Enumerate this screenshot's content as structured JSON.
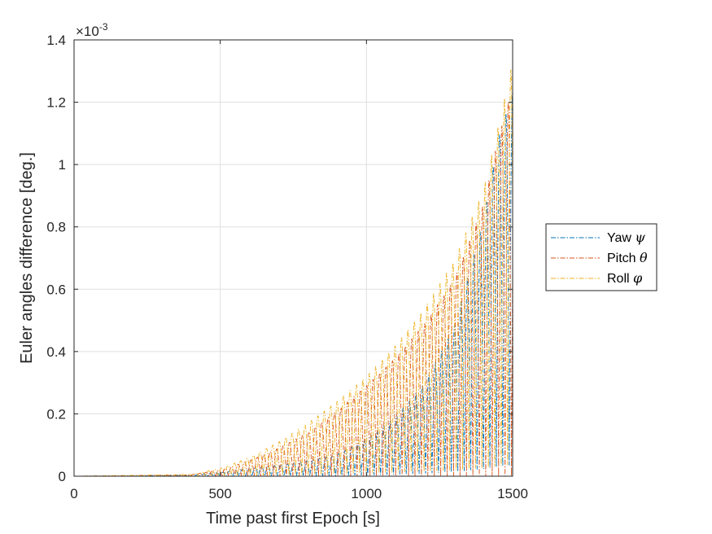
{
  "chart_data": {
    "type": "line",
    "xlabel": "Time past first Epoch [s]",
    "ylabel": "Euler angles difference [deg.]",
    "xlim": [
      0,
      1500
    ],
    "ylim": [
      0,
      0.0014
    ],
    "exponent_label": "×10",
    "exponent_power": "-3",
    "grid": true,
    "legend_position": "outside-right",
    "x_ticks": [
      0,
      500,
      1000,
      1500
    ],
    "x_tick_labels": [
      "0",
      "500",
      "1000",
      "1500"
    ],
    "y_ticks": [
      0,
      0.0002,
      0.0004,
      0.0006,
      0.0008,
      0.001,
      0.0012,
      0.0014
    ],
    "y_tick_labels": [
      "0",
      "0.2",
      "0.4",
      "0.6",
      "0.8",
      "1",
      "1.2",
      "1.4"
    ],
    "oscillation_period_s": 22,
    "series": [
      {
        "name": "Yaw",
        "symbol": "ψ",
        "color": "#0072BD",
        "style": "dash-dot",
        "envelope": {
          "x": [
            0,
            400,
            500,
            600,
            700,
            800,
            900,
            1000,
            1100,
            1200,
            1300,
            1400,
            1450,
            1500
          ],
          "y": [
            0,
            3e-06,
            1.2e-05,
            2.5e-05,
            3.5e-05,
            5e-05,
            7e-05,
            0.00012,
            0.00019,
            0.0003,
            0.00048,
            0.00082,
            0.00108,
            0.00123
          ]
        }
      },
      {
        "name": "Pitch",
        "symbol": "θ",
        "color": "#D95319",
        "style": "dash-dot",
        "envelope": {
          "x": [
            0,
            400,
            500,
            600,
            700,
            800,
            900,
            1000,
            1100,
            1200,
            1300,
            1400,
            1450,
            1500
          ],
          "y": [
            0,
            5e-06,
            2e-05,
            5e-05,
            9e-05,
            0.00014,
            0.00021,
            0.00029,
            0.00038,
            0.00049,
            0.00063,
            0.00087,
            0.00108,
            0.00125
          ]
        }
      },
      {
        "name": "Roll",
        "symbol": "φ",
        "color": "#EDB120",
        "style": "dash-dot",
        "envelope": {
          "x": [
            0,
            400,
            500,
            600,
            700,
            800,
            900,
            1000,
            1100,
            1200,
            1300,
            1400,
            1450,
            1500
          ],
          "y": [
            0,
            6e-06,
            2.5e-05,
            6e-05,
            0.00011,
            0.00017,
            0.00024,
            0.00032,
            0.00042,
            0.00054,
            0.00069,
            0.00092,
            0.00112,
            0.00133
          ]
        }
      }
    ]
  }
}
